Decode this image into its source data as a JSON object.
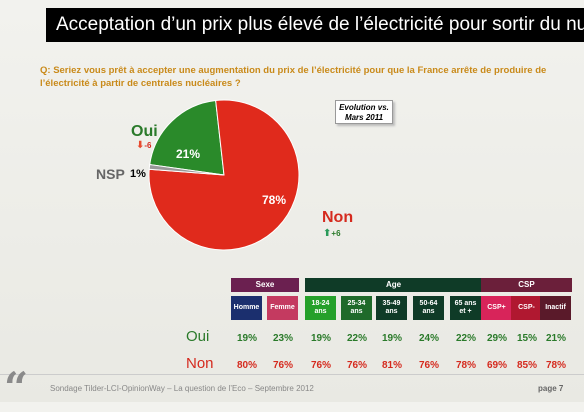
{
  "title": "Acceptation d’un prix plus élevé de l’électricité pour sortir du nucléaire",
  "question": "Q: Seriez vous prêt à accepter une augmentation du prix de l’électricité pour que la France arrête de produire de l’électricité à partir de centrales nucléaires ?",
  "evolution_note": "Evolution vs. Mars 2011",
  "chart_data": [
    {
      "type": "pie",
      "categories": [
        "Oui",
        "Non",
        "NSP"
      ],
      "values": [
        21,
        78,
        1
      ],
      "labels": [
        "21%",
        "78%",
        "1%"
      ],
      "colors": [
        "#2a8a2a",
        "#e02a1c",
        "#999999"
      ],
      "evolution": {
        "Oui": "-6",
        "Non": "+6"
      }
    },
    {
      "type": "table",
      "groups": [
        {
          "name": "Sexe",
          "color": "#6b2050",
          "columns": [
            "Homme",
            "Femme"
          ]
        },
        {
          "name": "Age",
          "color": "#0f3b27",
          "columns": [
            "18-24 ans",
            "25-34 ans",
            "35-49 ans",
            "50-64 ans",
            "65 ans et +"
          ]
        },
        {
          "name": "CSP",
          "color": "#6b1f3a",
          "columns": [
            "CSP+",
            "CSP-",
            "Inactif"
          ]
        }
      ],
      "column_colors": [
        "#1b2f6e",
        "#c43a60",
        "#25a02a",
        "#1f6a2a",
        "#0f3b27",
        "#0f3b27",
        "#0f3b27",
        "#d8245a",
        "#b01830",
        "#5a1a2a"
      ],
      "rows": [
        {
          "name": "Oui",
          "values": [
            "19%",
            "23%",
            "19%",
            "22%",
            "19%",
            "24%",
            "22%",
            "29%",
            "15%",
            "21%"
          ]
        },
        {
          "name": "Non",
          "values": [
            "80%",
            "76%",
            "76%",
            "76%",
            "81%",
            "76%",
            "78%",
            "69%",
            "85%",
            "78%"
          ]
        }
      ]
    }
  ],
  "footer": {
    "source": "Sondage Tilder-LCI-OpinionWay – La question de l’Eco – Septembre 2012",
    "page": "page 7"
  },
  "palette": {
    "oui": "#2a7a2a",
    "non": "#d52a1e",
    "accent": "#c98a1a"
  }
}
